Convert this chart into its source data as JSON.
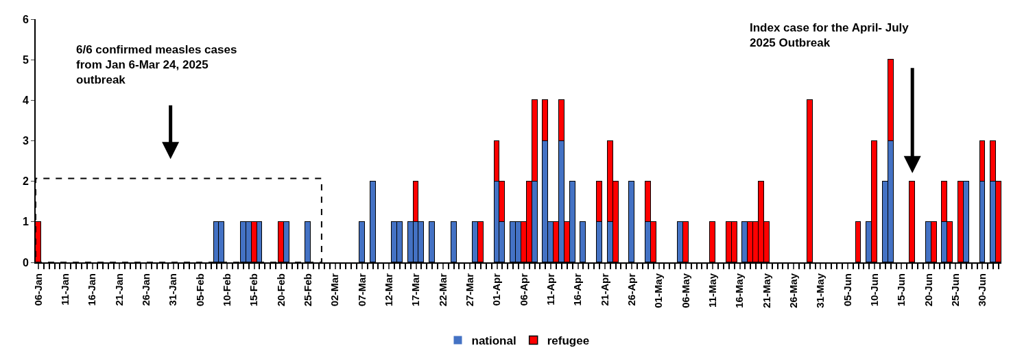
{
  "chart_data": {
    "type": "bar",
    "stacked": true,
    "categories": [
      "06-Jan",
      null,
      null,
      null,
      null,
      "11-Jan",
      null,
      null,
      null,
      null,
      "16-Jan",
      null,
      null,
      null,
      null,
      "21-Jan",
      null,
      null,
      null,
      null,
      "26-Jan",
      null,
      null,
      null,
      null,
      "31-Jan",
      null,
      null,
      null,
      null,
      "05-Feb",
      null,
      null,
      null,
      null,
      "10-Feb",
      null,
      null,
      null,
      null,
      "15-Feb",
      null,
      null,
      null,
      null,
      "20-Feb",
      null,
      null,
      null,
      null,
      "25-Feb",
      null,
      null,
      null,
      null,
      "02-Mar",
      null,
      null,
      null,
      null,
      "07-Mar",
      null,
      null,
      null,
      null,
      "12-Mar",
      null,
      null,
      null,
      null,
      "17-Mar",
      null,
      null,
      null,
      null,
      "22-Mar",
      null,
      null,
      null,
      null,
      "27-Mar",
      null,
      null,
      null,
      null,
      "01-Apr",
      null,
      null,
      null,
      null,
      "06-Apr",
      null,
      null,
      null,
      null,
      "11-Apr",
      null,
      null,
      null,
      null,
      "16-Apr",
      null,
      null,
      null,
      null,
      "21-Apr",
      null,
      null,
      null,
      null,
      "26-Apr",
      null,
      null,
      null,
      null,
      "01-May",
      null,
      null,
      null,
      null,
      "06-May",
      null,
      null,
      null,
      null,
      "11-May",
      null,
      null,
      null,
      null,
      "16-May",
      null,
      null,
      null,
      null,
      "21-May",
      null,
      null,
      null,
      null,
      "26-May",
      null,
      null,
      null,
      null,
      "31-May",
      null,
      null,
      null,
      null,
      "05-Jun",
      null,
      null,
      null,
      null,
      "10-Jun",
      null,
      null,
      null,
      null,
      "15-Jun",
      null,
      null,
      null,
      null,
      "20-Jun",
      null,
      null,
      null,
      null,
      "25-Jun",
      null,
      null,
      null,
      null,
      "30-Jun",
      null,
      null,
      null
    ],
    "series": [
      {
        "name": "national",
        "color": "#4472c4",
        "values": [
          0,
          0,
          0,
          0,
          0,
          0,
          0,
          0,
          0,
          0,
          0,
          0,
          0,
          0,
          0,
          0,
          0,
          0,
          0,
          0,
          0,
          0,
          0,
          0,
          0,
          0,
          0,
          0,
          0,
          0,
          0,
          0,
          0,
          1,
          1,
          0,
          0,
          0,
          1,
          1,
          0,
          1,
          0,
          0,
          0,
          0,
          1,
          0,
          0,
          0,
          1,
          0,
          0,
          0,
          0,
          0,
          0,
          0,
          0,
          0,
          1,
          0,
          2,
          0,
          0,
          0,
          1,
          1,
          0,
          1,
          1,
          1,
          0,
          1,
          0,
          0,
          0,
          1,
          0,
          0,
          0,
          1,
          0,
          0,
          0,
          2,
          1,
          0,
          1,
          1,
          0,
          0,
          2,
          0,
          3,
          1,
          0,
          3,
          0,
          2,
          0,
          1,
          0,
          0,
          1,
          0,
          1,
          0,
          0,
          0,
          2,
          0,
          0,
          1,
          0,
          0,
          0,
          0,
          0,
          1,
          0,
          0,
          0,
          0,
          0,
          0,
          0,
          0,
          0,
          0,
          0,
          1,
          0,
          0,
          0,
          0,
          0,
          0,
          0,
          0,
          0,
          0,
          0,
          0,
          0,
          0,
          0,
          0,
          0,
          0,
          0,
          0,
          0,
          0,
          1,
          0,
          0,
          2,
          3,
          0,
          0,
          0,
          0,
          0,
          0,
          1,
          0,
          0,
          1,
          0,
          0,
          0,
          2,
          0,
          0,
          2,
          0,
          2,
          0
        ]
      },
      {
        "name": "refugee",
        "color": "#ff0000",
        "values": [
          1,
          0,
          0,
          0,
          0,
          0,
          0,
          0,
          0,
          0,
          0,
          0,
          0,
          0,
          0,
          0,
          0,
          0,
          0,
          0,
          0,
          0,
          0,
          0,
          0,
          0,
          0,
          0,
          0,
          0,
          0,
          0,
          0,
          0,
          0,
          0,
          0,
          0,
          0,
          0,
          1,
          0,
          0,
          0,
          0,
          1,
          0,
          0,
          0,
          0,
          0,
          0,
          0,
          0,
          0,
          0,
          0,
          0,
          0,
          0,
          0,
          0,
          0,
          0,
          0,
          0,
          0,
          0,
          0,
          0,
          1,
          0,
          0,
          0,
          0,
          0,
          0,
          0,
          0,
          0,
          0,
          0,
          1,
          0,
          0,
          1,
          1,
          0,
          0,
          0,
          1,
          2,
          2,
          0,
          1,
          0,
          1,
          1,
          1,
          0,
          0,
          0,
          0,
          0,
          1,
          0,
          2,
          2,
          0,
          0,
          0,
          0,
          0,
          1,
          1,
          0,
          0,
          0,
          0,
          0,
          1,
          0,
          0,
          0,
          0,
          1,
          0,
          0,
          1,
          1,
          0,
          0,
          1,
          1,
          2,
          1,
          0,
          0,
          0,
          0,
          0,
          0,
          0,
          4,
          0,
          0,
          0,
          0,
          0,
          0,
          0,
          0,
          1,
          0,
          0,
          3,
          0,
          0,
          2,
          0,
          0,
          0,
          2,
          0,
          0,
          0,
          1,
          0,
          1,
          1,
          0,
          2,
          0,
          0,
          0,
          1,
          0,
          1,
          2
        ]
      }
    ],
    "ylim": [
      0,
      6
    ],
    "yticks": [
      0,
      1,
      2,
      3,
      4,
      5,
      6
    ],
    "legend": "bottom",
    "annotations": [
      "6/6 confirmed measles cases\nfrom Jan 6-Mar 24, 2025\noutbreak",
      "Index case for the April- July\n2025 Outbreak"
    ]
  }
}
